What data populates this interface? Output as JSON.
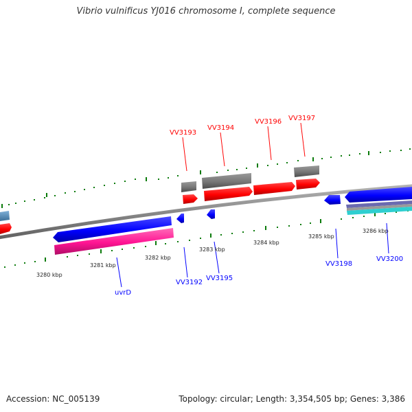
{
  "title": "Vibrio vulnificus YJ016 chromosome I, complete sequence",
  "footer": {
    "accession": "Accession: NC_005139",
    "summary": "Topology: circular; Length: 3,354,505 bp; Genes: 3,386"
  },
  "colors": {
    "forward_gene": "#ff0000",
    "reverse_gene": "#0000ff",
    "gray_feature": "#777777",
    "pink_feature": "#ff1493",
    "teal_feature": "#2ecfd0",
    "ticks": "#0a7a0a",
    "backbone": "#8a8a8a"
  },
  "scale_labels": [
    "3280 kbp",
    "3281 kbp",
    "3282 kbp",
    "3283 kbp",
    "3284 kbp",
    "3285 kbp",
    "3286 kbp"
  ],
  "gene_labels": {
    "forward": [
      "VV3193",
      "VV3194",
      "VV3196",
      "VV3197"
    ],
    "reverse": [
      "uvrD",
      "VV3192",
      "VV3195",
      "VV3198",
      "VV3200"
    ]
  }
}
